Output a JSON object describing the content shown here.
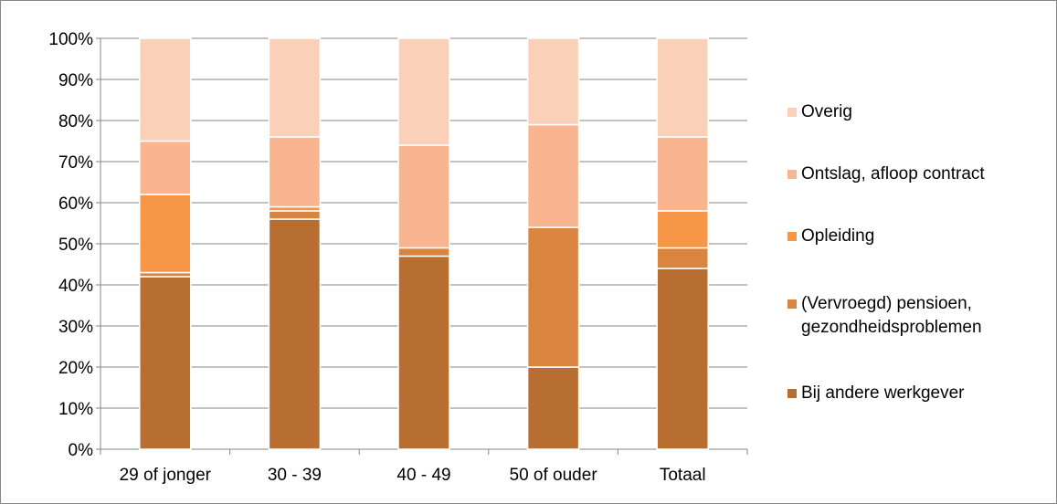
{
  "chart_data": {
    "type": "bar",
    "stacked": true,
    "percent_stacked": true,
    "categories": [
      "29 of jonger",
      "30 - 39",
      "40 - 49",
      "50 of ouder",
      "Totaal"
    ],
    "series": [
      {
        "name": "Bij andere werkgever",
        "color": "#B96E31",
        "values": [
          42,
          56,
          47,
          20,
          44
        ]
      },
      {
        "name": "(Vervroegd) pensioen,\ngezondheidsproblemen",
        "color": "#D9843F",
        "values": [
          1,
          2,
          2,
          34,
          5
        ]
      },
      {
        "name": "Opleiding",
        "color": "#F79646",
        "values": [
          19,
          1,
          0,
          0,
          9
        ]
      },
      {
        "name": "Ontslag, afloop contract",
        "color": "#F8B58F",
        "values": [
          13,
          17,
          25,
          25,
          18
        ]
      },
      {
        "name": "Overig",
        "color": "#FBD0B8",
        "values": [
          25,
          24,
          26,
          21,
          24
        ]
      }
    ],
    "y_ticks": [
      "0%",
      "10%",
      "20%",
      "30%",
      "40%",
      "50%",
      "60%",
      "70%",
      "80%",
      "90%",
      "100%"
    ],
    "ylim": [
      0,
      100
    ],
    "grid": true,
    "legend_position": "right"
  }
}
